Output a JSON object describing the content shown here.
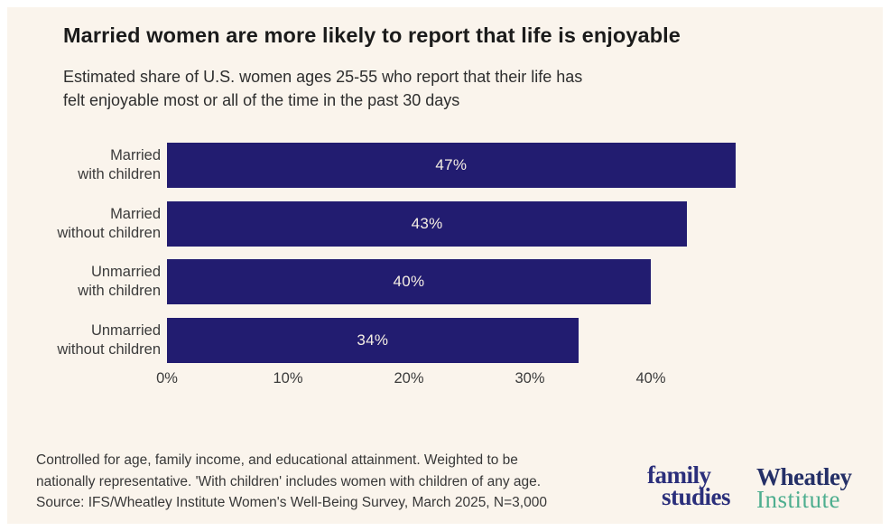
{
  "page": {
    "background": "#ffffff",
    "panel_background": "#FAF4EC"
  },
  "header": {
    "title": "Married women are more likely to report that life is enjoyable",
    "subtitle_line1": "Estimated share of U.S. women ages 25-55 who report that their life has",
    "subtitle_line2": "felt enjoyable most or all of the time in the past 30 days"
  },
  "chart_data": {
    "type": "bar",
    "orientation": "horizontal",
    "title": "Married women are more likely to report that life is enjoyable",
    "subtitle": "Estimated share of U.S. women ages 25-55 who report that their life has felt enjoyable most or all of the time in the past 30 days",
    "categories": [
      "Married\nwith children",
      "Married\nwithout children",
      "Unmarried\nwith children",
      "Unmarried\nwithout children"
    ],
    "values": [
      47,
      43,
      40,
      34
    ],
    "value_labels": [
      "47%",
      "43%",
      "40%",
      "34%"
    ],
    "x_tick_labels": [
      "0%",
      "10%",
      "20%",
      "30%",
      "40%"
    ],
    "x_tick_values": [
      0,
      10,
      20,
      30,
      40
    ],
    "xlim": [
      0,
      50
    ],
    "grid": false,
    "legend": "none",
    "bar_color": "#221C70",
    "value_label_color": "#F6EFE4"
  },
  "footer": {
    "line1": "Controlled for age, family income, and educational attainment. Weighted to be",
    "line2": "nationally representative. 'With children' includes women with children of any age.",
    "line3": "Source: IFS/Wheatley Institute Women's Well-Being Survey, March 2025, N=3,000"
  },
  "logos": {
    "family_studies": {
      "line1": "family",
      "line2": "studies",
      "color": "#2B2F7B"
    },
    "wheatley_institute": {
      "line1": "Wheatley",
      "line2": "Institute",
      "color_primary": "#253067",
      "color_secondary": "#4EAE8F"
    }
  }
}
